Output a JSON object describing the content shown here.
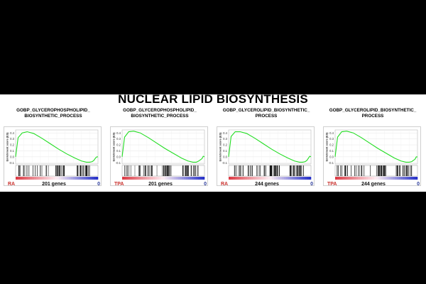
{
  "title": "NUCLEAR LIPID BIOSYNTHESIS",
  "colors": {
    "curve": "#22dd22",
    "left_label": "#c9302c",
    "right_label": "#2a3a9a"
  },
  "chart_data": [
    {
      "type": "line",
      "title_lines": [
        "GOBP_GLYCEROPHOSPHOLIPID_",
        "BIOSYNTHETIC_PROCESS"
      ],
      "ylabel": "Enrichment score (ES)",
      "yticks": [
        "0.4",
        "0.3",
        "0.2",
        "0.1",
        "0.0",
        "-0.1"
      ],
      "ylim": [
        -0.12,
        0.45
      ],
      "x": [
        0,
        0.03,
        0.08,
        0.14,
        0.22,
        0.32,
        0.42,
        0.52,
        0.62,
        0.72,
        0.8,
        0.86,
        0.9,
        0.93,
        0.95,
        0.97,
        0.985,
        1.0
      ],
      "es": [
        0.0,
        0.32,
        0.4,
        0.42,
        0.39,
        0.31,
        0.22,
        0.13,
        0.05,
        -0.02,
        -0.07,
        -0.09,
        -0.09,
        -0.08,
        -0.06,
        -0.02,
        0.0,
        0.0
      ],
      "hit_ranges": [
        [
          0.02,
          0.44
        ],
        [
          0.48,
          0.6
        ],
        [
          0.73,
          0.9
        ]
      ],
      "hit_count": 70,
      "left_label": "RA",
      "gene_count_label": "201 genes",
      "right_label": "0"
    },
    {
      "type": "line",
      "title_lines": [
        "GOBP_GLYCEROPHOSPHOLIPID_",
        "BIOSYNTHETIC_PROCESS"
      ],
      "ylabel": "Enrichment score (ES)",
      "yticks": [
        "0.4",
        "0.3",
        "0.2",
        "0.1",
        "0.0",
        "-0.1"
      ],
      "ylim": [
        -0.12,
        0.45
      ],
      "x": [
        0,
        0.03,
        0.08,
        0.14,
        0.22,
        0.32,
        0.42,
        0.52,
        0.62,
        0.72,
        0.8,
        0.86,
        0.9,
        0.93,
        0.95,
        0.97,
        0.985,
        1.0
      ],
      "es": [
        0.0,
        0.33,
        0.42,
        0.43,
        0.4,
        0.32,
        0.23,
        0.14,
        0.06,
        -0.02,
        -0.07,
        -0.09,
        -0.09,
        -0.07,
        -0.05,
        -0.03,
        0.01,
        0.0
      ],
      "hit_ranges": [
        [
          0.02,
          0.44
        ],
        [
          0.48,
          0.6
        ],
        [
          0.73,
          0.93
        ]
      ],
      "hit_count": 72,
      "left_label": "TPA",
      "gene_count_label": "201 genes",
      "right_label": "0"
    },
    {
      "type": "line",
      "title_lines": [
        "GOBP_GLYCEROLIPID_BIOSYNTHETIC_",
        "PROCESS"
      ],
      "ylabel": "Enrichment score (ES)",
      "yticks": [
        "0.4",
        "0.3",
        "0.2",
        "0.1",
        "0.0",
        "-0.1"
      ],
      "ylim": [
        -0.12,
        0.45
      ],
      "x": [
        0,
        0.03,
        0.08,
        0.14,
        0.22,
        0.32,
        0.42,
        0.52,
        0.62,
        0.72,
        0.8,
        0.86,
        0.9,
        0.93,
        0.95,
        0.97,
        0.985,
        1.0
      ],
      "es": [
        0.0,
        0.34,
        0.42,
        0.42,
        0.39,
        0.31,
        0.22,
        0.13,
        0.05,
        -0.02,
        -0.07,
        -0.09,
        -0.09,
        -0.08,
        -0.06,
        -0.02,
        0.01,
        0.0
      ],
      "hit_ranges": [
        [
          0.02,
          0.46
        ],
        [
          0.5,
          0.62
        ],
        [
          0.74,
          0.92
        ]
      ],
      "hit_count": 78,
      "left_label": "RA",
      "gene_count_label": "244 genes",
      "right_label": "0"
    },
    {
      "type": "line",
      "title_lines": [
        "GOBP_GLYCEROLIPID_BIOSYNTHETIC_",
        "PROCESS"
      ],
      "ylabel": "Enrichment score (ES)",
      "yticks": [
        "0.4",
        "0.3",
        "0.2",
        "0.1",
        "0.0",
        "-0.1"
      ],
      "ylim": [
        -0.12,
        0.45
      ],
      "x": [
        0,
        0.03,
        0.08,
        0.14,
        0.22,
        0.32,
        0.42,
        0.52,
        0.62,
        0.72,
        0.8,
        0.86,
        0.9,
        0.93,
        0.95,
        0.97,
        0.985,
        1.0
      ],
      "es": [
        0.0,
        0.33,
        0.42,
        0.43,
        0.4,
        0.32,
        0.23,
        0.14,
        0.06,
        -0.02,
        -0.07,
        -0.09,
        -0.09,
        -0.08,
        -0.06,
        -0.04,
        0.0,
        0.0
      ],
      "hit_ranges": [
        [
          0.02,
          0.46
        ],
        [
          0.5,
          0.62
        ],
        [
          0.74,
          0.93
        ]
      ],
      "hit_count": 80,
      "left_label": "TPA",
      "gene_count_label": "244 genes",
      "right_label": "0"
    }
  ]
}
